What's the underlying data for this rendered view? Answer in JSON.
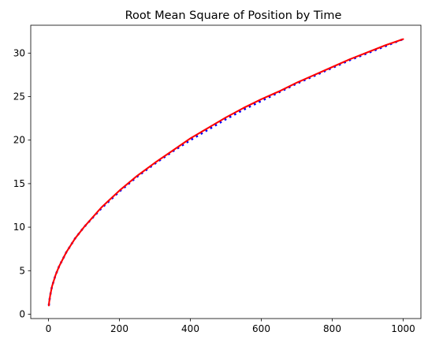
{
  "chart_data": {
    "type": "line",
    "title": "Root Mean Square of Position by Time",
    "xlabel": "",
    "ylabel": "",
    "xlim": [
      -50,
      1050
    ],
    "ylim": [
      -0.5,
      33.2
    ],
    "x_ticks": [
      0,
      200,
      400,
      600,
      800,
      1000
    ],
    "y_ticks": [
      0,
      5,
      10,
      15,
      20,
      25,
      30
    ],
    "grid": false,
    "legend": "none",
    "series": [
      {
        "style": "dotted",
        "color": "#0000ff",
        "x": [
          1,
          2,
          5,
          10,
          20,
          30,
          50,
          75,
          100,
          150,
          200,
          250,
          300,
          350,
          400,
          450,
          500,
          550,
          600,
          650,
          700,
          750,
          800,
          850,
          900,
          950,
          1000
        ],
        "y": [
          1.0,
          1.4,
          2.2,
          3.2,
          4.5,
          5.5,
          7.1,
          8.7,
          10.0,
          12.2,
          14.1,
          15.8,
          17.3,
          18.7,
          20.0,
          21.2,
          22.4,
          23.5,
          24.5,
          25.5,
          26.5,
          27.4,
          28.3,
          29.2,
          30.0,
          30.8,
          31.6
        ]
      },
      {
        "style": "solid",
        "color": "#ff0000",
        "x": [
          1,
          2,
          5,
          10,
          20,
          30,
          50,
          75,
          100,
          150,
          200,
          250,
          300,
          350,
          400,
          450,
          500,
          550,
          600,
          650,
          700,
          750,
          800,
          850,
          900,
          950,
          1000
        ],
        "y": [
          1.0,
          1.4,
          2.2,
          3.2,
          4.5,
          5.5,
          7.1,
          8.7,
          10.0,
          12.3,
          14.2,
          15.9,
          17.4,
          18.8,
          20.2,
          21.4,
          22.6,
          23.7,
          24.7,
          25.6,
          26.6,
          27.5,
          28.4,
          29.3,
          30.1,
          30.9,
          31.6
        ]
      }
    ]
  }
}
